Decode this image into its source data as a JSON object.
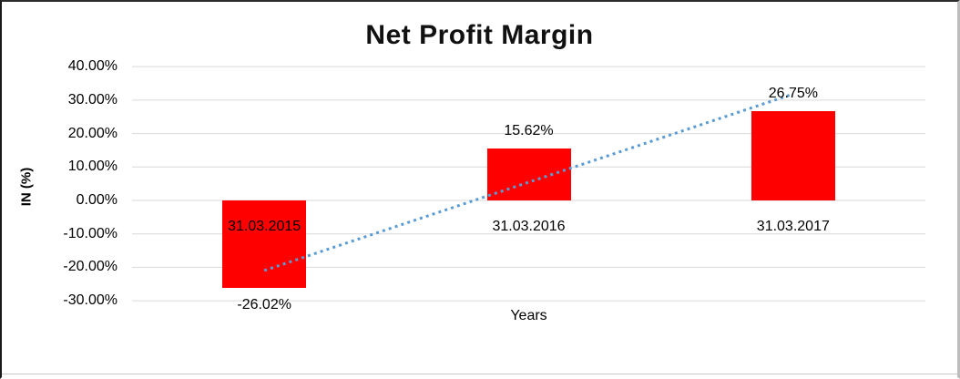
{
  "chart_data": {
    "type": "bar",
    "title": "Net Profit Margin",
    "xlabel": "Years",
    "ylabel": "IN (%)",
    "categories": [
      "31.03.2015",
      "31.03.2016",
      "31.03.2017"
    ],
    "values": [
      -26.02,
      15.62,
      26.75
    ],
    "data_labels": [
      "-26.02%",
      "15.62%",
      "26.75%"
    ],
    "ylim": [
      -30,
      40
    ],
    "yticks": [
      {
        "value": 40,
        "label": "40.00%"
      },
      {
        "value": 30,
        "label": "30.00%"
      },
      {
        "value": 20,
        "label": "20.00%"
      },
      {
        "value": 10,
        "label": "10.00%"
      },
      {
        "value": 0,
        "label": "0.00%"
      },
      {
        "value": -10,
        "label": "-10.00%"
      },
      {
        "value": -20,
        "label": "-20.00%"
      },
      {
        "value": -30,
        "label": "-30.00%"
      }
    ],
    "grid": true,
    "legend": false,
    "bar_color": "#FF0000",
    "gridline_color": "#D9D9D9",
    "trendline": {
      "type": "linear",
      "style": "dotted",
      "color": "#5B9BD5",
      "start_value": -20.94,
      "end_value": 31.84
    }
  }
}
